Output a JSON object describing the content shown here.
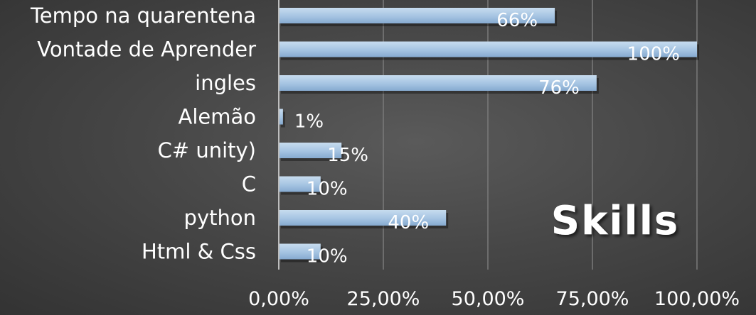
{
  "chart_data": {
    "type": "bar",
    "orientation": "horizontal",
    "title": "Skills",
    "categories": [
      "Tempo na quarentena",
      "Vontade de Aprender",
      "ingles",
      "Alemão",
      "C# unity)",
      "C",
      "python",
      "Html & Css"
    ],
    "values": [
      66,
      100,
      76,
      1,
      15,
      10,
      40,
      10
    ],
    "data_labels": [
      "66%",
      "100%",
      "76%",
      "1%",
      "15%",
      "10%",
      "40%",
      "10%"
    ],
    "xticks": [
      0,
      25,
      50,
      75,
      100
    ],
    "xtick_labels": [
      "0,00%",
      "25,00%",
      "50,00%",
      "75,00%",
      "100,00%"
    ],
    "xlim": [
      0,
      100
    ],
    "xlabel": "",
    "ylabel": "",
    "grid": true,
    "legend": false,
    "bar_color": "#9dbfdf"
  }
}
